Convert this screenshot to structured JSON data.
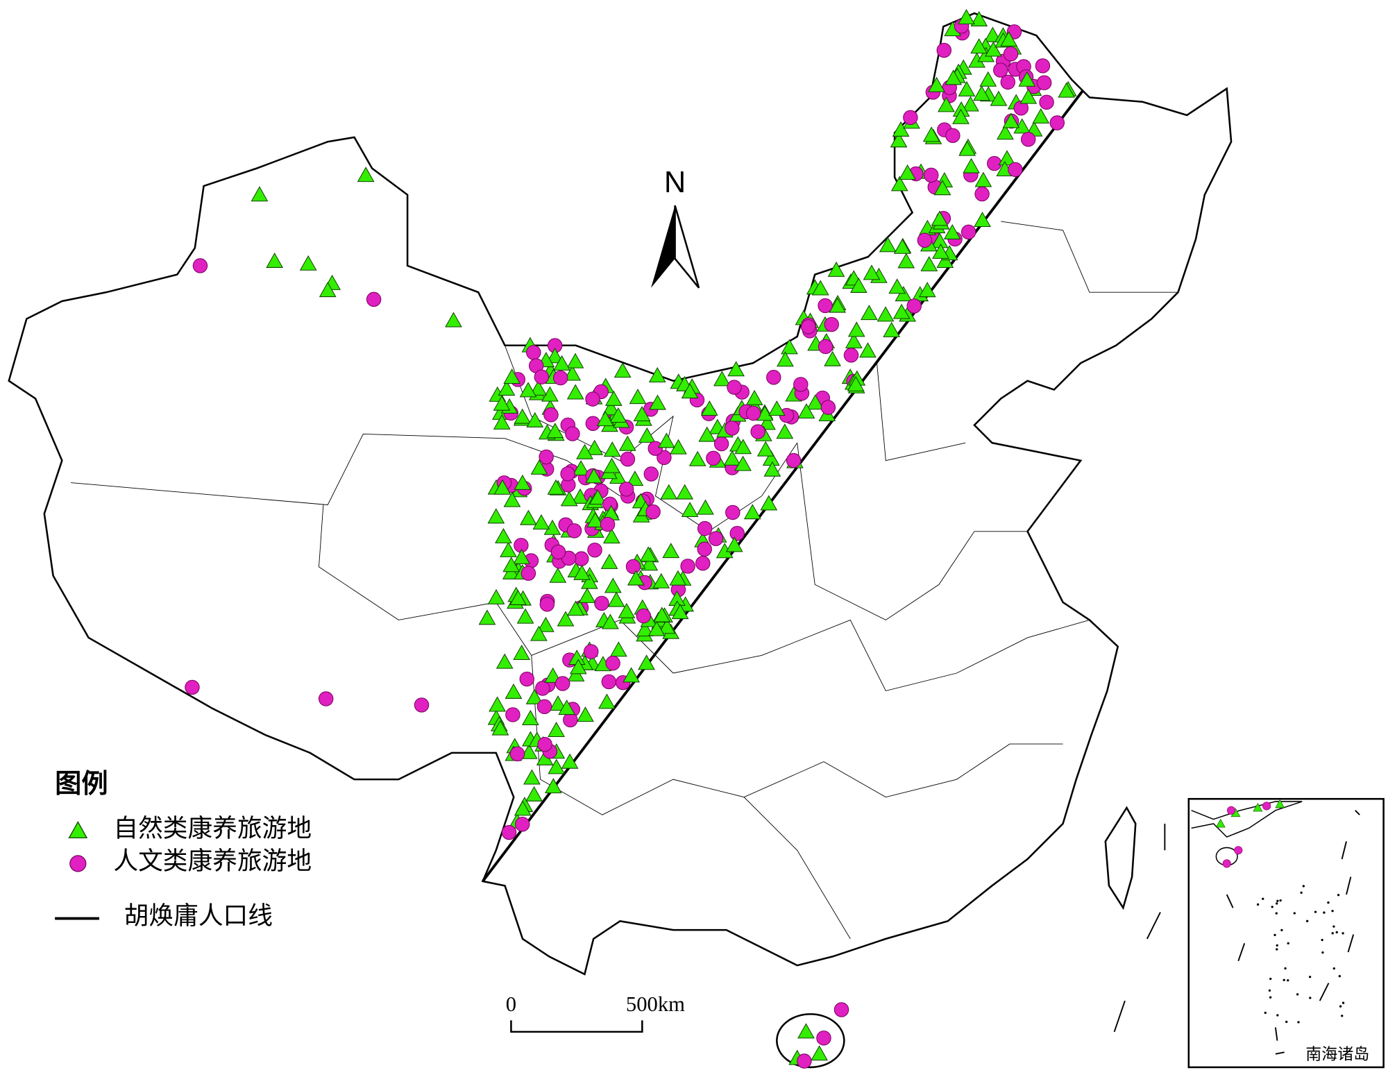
{
  "map": {
    "north": "N",
    "legend": {
      "title": "图例",
      "items": [
        "自然类康养旅游地",
        "人文类康养旅游地",
        "胡焕庸人口线"
      ]
    },
    "scale": {
      "labels": [
        "0",
        "500km"
      ]
    },
    "inset": {
      "label": "南海诸岛"
    }
  }
}
